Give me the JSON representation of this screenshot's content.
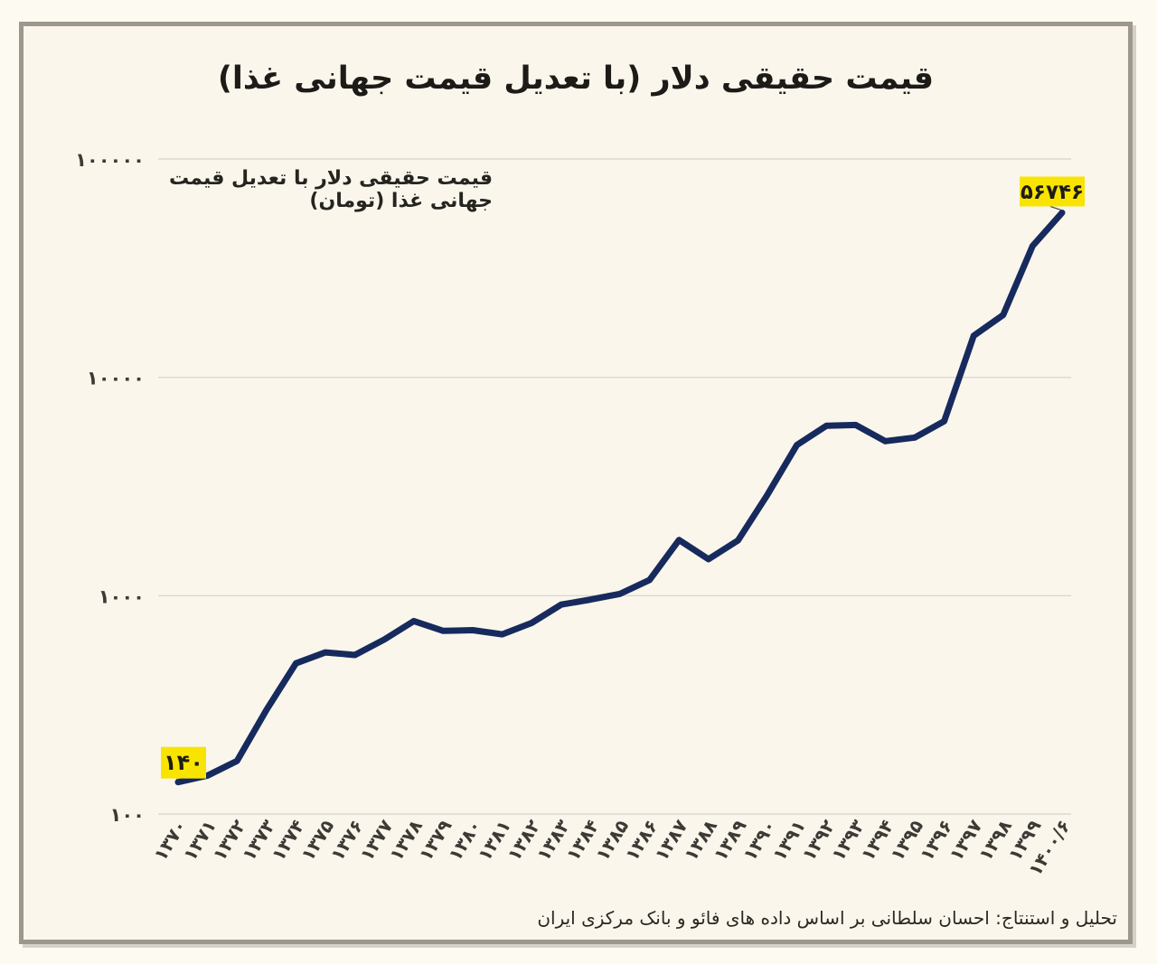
{
  "chart_data": {
    "type": "line",
    "title": "قیمت حقیقی دلار (با تعدیل قیمت جهانی غذا)",
    "series_label": "قیمت حقیقی دلار با تعدیل قیمت جهانی غذا (تومان)",
    "categories": [
      "۱۳۷۰",
      "۱۳۷۱",
      "۱۳۷۲",
      "۱۳۷۳",
      "۱۳۷۴",
      "۱۳۷۵",
      "۱۳۷۶",
      "۱۳۷۷",
      "۱۳۷۸",
      "۱۳۷۹",
      "۱۳۸۰",
      "۱۳۸۱",
      "۱۳۸۲",
      "۱۳۸۳",
      "۱۳۸۴",
      "۱۳۸۵",
      "۱۳۸۶",
      "۱۳۸۷",
      "۱۳۸۸",
      "۱۳۸۹",
      "۱۳۹۰",
      "۱۳۹۱",
      "۱۳۹۲",
      "۱۳۹۳",
      "۱۳۹۴",
      "۱۳۹۵",
      "۱۳۹۶",
      "۱۳۹۷",
      "۱۳۹۸",
      "۱۳۹۹",
      "۱۴۰۰/۶"
    ],
    "values": [
      140,
      150,
      175,
      300,
      490,
      550,
      535,
      630,
      765,
      690,
      695,
      665,
      750,
      910,
      960,
      1020,
      1180,
      1800,
      1470,
      1790,
      2900,
      4900,
      6000,
      6050,
      5100,
      5300,
      6300,
      15500,
      19300,
      40000,
      56746
    ],
    "y_scale": "log",
    "y_ticks": [
      100,
      1000,
      10000,
      100000
    ],
    "y_tick_labels": [
      "۱۰۰",
      "۱۰۰۰",
      "۱۰۰۰۰",
      "۱۰۰۰۰۰"
    ],
    "ylim": [
      100,
      100000
    ],
    "grid": true,
    "legend_position": "top-left-inside",
    "annotations": [
      {
        "index": 0,
        "value": 140,
        "label": "۱۴۰"
      },
      {
        "index": 30,
        "value": 56746,
        "label": "۵۶۷۴۶"
      }
    ],
    "line_color": "#172a5e",
    "highlight_color": "#f8e400",
    "grid_color": "#dcd8cf",
    "axis_text_color": "#3c3a35",
    "annotation_text_color": "#1d1c18"
  },
  "source_note": "تحلیل و استنتاج: احسان سلطانی بر اساس داده های فائو و بانک مرکزی ایران"
}
